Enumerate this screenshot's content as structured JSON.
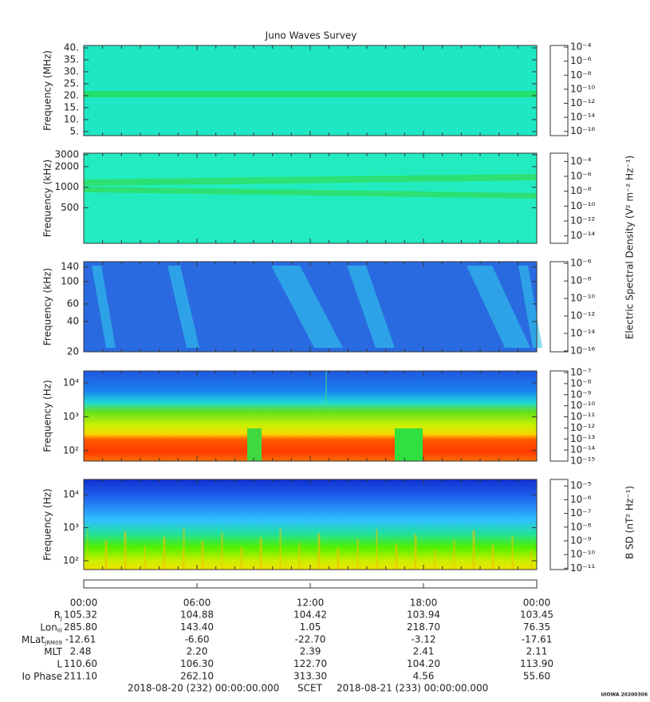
{
  "title": "Juno Waves Survey",
  "chart_data": [
    {
      "type": "spectrogram",
      "ylabel": "Frequency (MHz)",
      "ylog": false,
      "ylim": [
        3.3,
        41
      ],
      "yticks": [
        {
          "value": 40,
          "label": "40."
        },
        {
          "value": 35,
          "label": "35."
        },
        {
          "value": 30,
          "label": "30."
        },
        {
          "value": 25,
          "label": "25."
        },
        {
          "value": 20,
          "label": "20."
        },
        {
          "value": 15,
          "label": "15."
        },
        {
          "value": 10,
          "label": "10."
        },
        {
          "value": 5,
          "label": "5."
        }
      ],
      "colorbar": {
        "log": true,
        "clim": [
          2.5e-17,
          0.00017
        ],
        "ticks": [
          {
            "value": 0.0001,
            "label": "10⁻⁴"
          },
          {
            "value": 1e-06,
            "label": "10⁻⁶"
          },
          {
            "value": 1e-08,
            "label": "10⁻⁸"
          },
          {
            "value": 1e-10,
            "label": "10⁻¹⁰"
          },
          {
            "value": 1e-12,
            "label": "10⁻¹²"
          },
          {
            "value": 1e-14,
            "label": "10⁻¹⁴"
          },
          {
            "value": 1e-16,
            "label": "10⁻¹⁶"
          }
        ]
      }
    },
    {
      "type": "spectrogram",
      "ylabel": "Frequency (kHz)",
      "ylog": true,
      "ylim": [
        150,
        3160
      ],
      "yticks": [
        3000,
        2000,
        1000,
        500
      ],
      "colorbar": {
        "log": true,
        "clim": [
          1e-15,
          0.0013
        ],
        "ticks": [
          {
            "value": 0.0001,
            "label": "10⁻⁴"
          },
          {
            "value": 1e-06,
            "label": "10⁻⁶"
          },
          {
            "value": 1e-08,
            "label": "10⁻⁸"
          },
          {
            "value": 1e-10,
            "label": "10⁻¹⁰"
          },
          {
            "value": 1e-12,
            "label": "10⁻¹²"
          },
          {
            "value": 1e-14,
            "label": "10⁻¹⁴"
          }
        ]
      }
    },
    {
      "type": "spectrogram",
      "ylabel": "Frequency (kHz)",
      "ylog": true,
      "ylim": [
        20,
        158
      ],
      "yticks": [
        140,
        100,
        60,
        40,
        20
      ],
      "colorbar": {
        "log": true,
        "clim": [
          8e-17,
          1.6e-06
        ],
        "ticks": [
          {
            "value": 1e-06,
            "label": "10⁻⁶"
          },
          {
            "value": 1e-08,
            "label": "10⁻⁸"
          },
          {
            "value": 1e-10,
            "label": "10⁻¹⁰"
          },
          {
            "value": 1e-12,
            "label": "10⁻¹²"
          },
          {
            "value": 1e-14,
            "label": "10⁻¹⁴"
          },
          {
            "value": 1e-16,
            "label": "10⁻¹⁶"
          }
        ]
      }
    },
    {
      "type": "spectrogram",
      "ylabel": "Frequency (Hz)",
      "ylog": true,
      "ylim": [
        49,
        22500
      ],
      "yticks": [
        {
          "value": 10000,
          "label": "10⁴"
        },
        {
          "value": 1000,
          "label": "10³"
        },
        {
          "value": 100,
          "label": "10²"
        }
      ],
      "colorbar": {
        "log": true,
        "clim": [
          1e-15,
          1.4e-07
        ],
        "ticks": [
          {
            "value": 1e-07,
            "label": "10⁻⁷"
          },
          {
            "value": 1e-08,
            "label": "10⁻⁸"
          },
          {
            "value": 1e-09,
            "label": "10⁻⁹"
          },
          {
            "value": 1e-10,
            "label": "10⁻¹⁰"
          },
          {
            "value": 1e-11,
            "label": "10⁻¹¹"
          },
          {
            "value": 1e-12,
            "label": "10⁻¹²"
          },
          {
            "value": 1e-13,
            "label": "10⁻¹³"
          },
          {
            "value": 1e-14,
            "label": "10⁻¹⁴"
          },
          {
            "value": 1e-15,
            "label": "10⁻¹⁵"
          }
        ]
      }
    },
    {
      "type": "spectrogram",
      "ylabel": "Frequency (Hz)",
      "ylog": true,
      "ylim": [
        54,
        28700
      ],
      "yticks": [
        {
          "value": 10000,
          "label": "10⁴"
        },
        {
          "value": 1000,
          "label": "10³"
        },
        {
          "value": 100,
          "label": "10²"
        }
      ],
      "colorbar": {
        "log": true,
        "clim": [
          8e-12,
          3e-05
        ],
        "ticks": [
          {
            "value": 1e-05,
            "label": "10⁻⁵"
          },
          {
            "value": 1e-06,
            "label": "10⁻⁶"
          },
          {
            "value": 1e-07,
            "label": "10⁻⁷"
          },
          {
            "value": 1e-08,
            "label": "10⁻⁸"
          },
          {
            "value": 1e-09,
            "label": "10⁻⁹"
          },
          {
            "value": 1e-10,
            "label": "10⁻¹⁰"
          },
          {
            "value": 1e-11,
            "label": "10⁻¹¹"
          }
        ]
      }
    }
  ],
  "colorbar_labels": [
    "Electric Spectral Density (V² m⁻² Hz⁻¹)",
    "B SD (nT² Hz⁻¹)"
  ],
  "time_labels": [
    "00:00",
    "06:00",
    "12:00",
    "18:00",
    "00:00"
  ],
  "ephemeris": [
    {
      "label": "R",
      "sub": "J",
      "values": [
        "105.32",
        "104.88",
        "104.42",
        "103.94",
        "103.45"
      ]
    },
    {
      "label": "Lon",
      "sub": "III",
      "values": [
        "285.80",
        "143.40",
        "1.05",
        "218.70",
        "76.35"
      ]
    },
    {
      "label": "MLat",
      "sub": "JRM09",
      "values": [
        "-12.61",
        "-6.60",
        "-22.70",
        "-3.12",
        "-17.61"
      ]
    },
    {
      "label": "MLT",
      "values": [
        "2.48",
        "2.20",
        "2.39",
        "2.41",
        "2.11"
      ]
    },
    {
      "label": "L",
      "values": [
        "110.60",
        "106.30",
        "122.70",
        "104.20",
        "113.90"
      ]
    },
    {
      "label": "Io Phase",
      "values": [
        "211.10",
        "262.10",
        "313.30",
        "4.56",
        "55.60"
      ]
    }
  ],
  "scet": {
    "start": "2018-08-20 (232) 00:00:00.000",
    "label": "SCET",
    "end": "2018-08-21 (233) 00:00:00.000"
  },
  "footer": "UIOWA 20200306"
}
